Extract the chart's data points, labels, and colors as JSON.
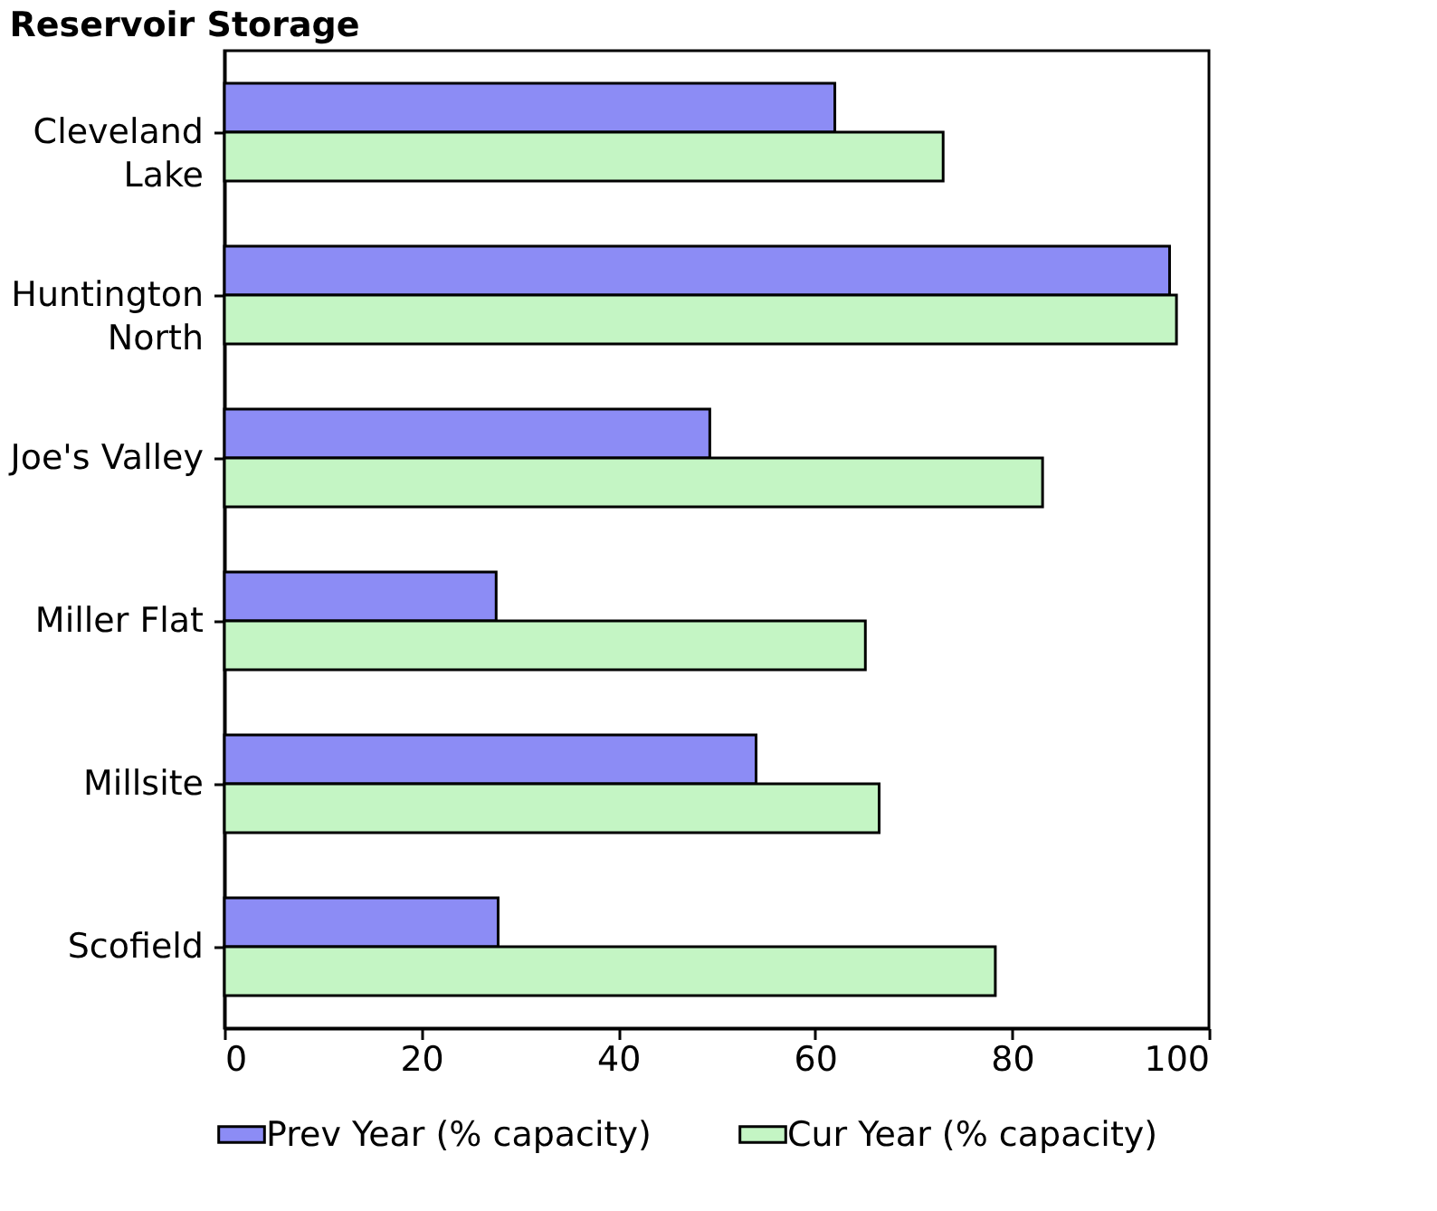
{
  "chart_data": {
    "type": "bar",
    "orientation": "horizontal",
    "title": "Reservoir Storage",
    "categories": [
      "Cleveland\nLake",
      "Huntington\nNorth",
      "Joe's Valley",
      "Miller Flat",
      "Millsite",
      "Scofield"
    ],
    "series": [
      {
        "name": "Prev Year (% capacity)",
        "color": "#8c8cf5",
        "values": [
          62,
          96,
          49.3,
          27.6,
          54,
          27.8
        ]
      },
      {
        "name": "Cur Year (% capacity)",
        "color": "#c4f5c4",
        "values": [
          73,
          96.7,
          83.1,
          65.1,
          66.5,
          78.3
        ]
      }
    ],
    "xlim": [
      0,
      100
    ],
    "xticks": [
      0,
      20,
      40,
      60,
      80,
      100
    ],
    "grid": false,
    "legend": "bottom"
  }
}
